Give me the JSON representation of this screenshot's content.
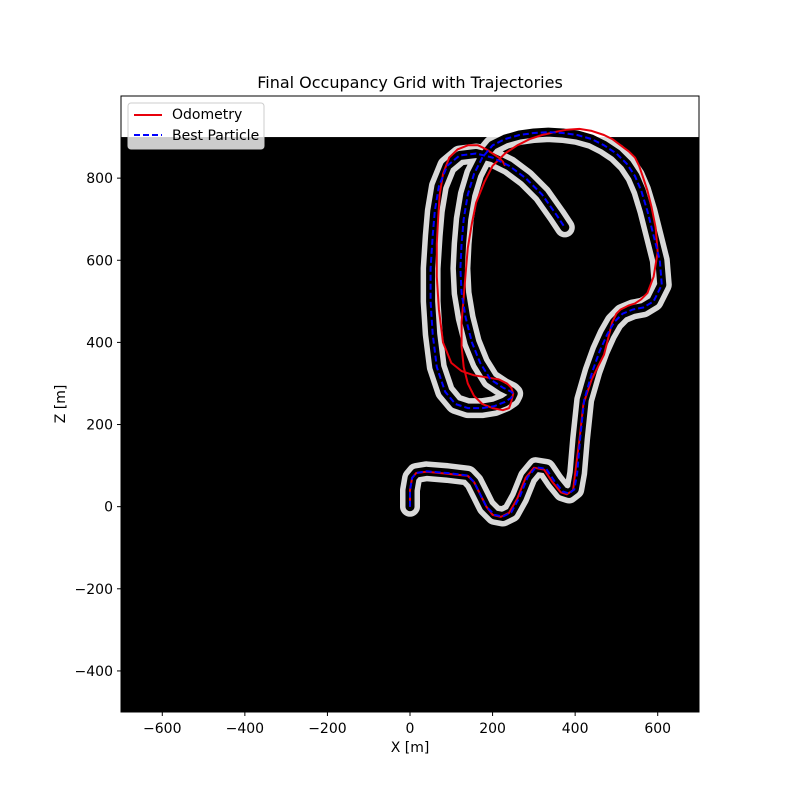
{
  "chart_data": {
    "type": "line",
    "title": "Final Occupancy Grid with Trajectories",
    "xlabel": "X [m]",
    "ylabel": "Z [m]",
    "xlim": [
      -700,
      700
    ],
    "ylim": [
      -500,
      1000
    ],
    "xticks": [
      -600,
      -400,
      -200,
      0,
      200,
      400,
      600
    ],
    "yticks": [
      -400,
      -200,
      0,
      200,
      400,
      600,
      800
    ],
    "xtick_labels": [
      "−600",
      "−400",
      "−200",
      "0",
      "200",
      "400",
      "600"
    ],
    "ytick_labels": [
      "−400",
      "−200",
      "0",
      "200",
      "400",
      "600",
      "800"
    ],
    "grid": false,
    "background": {
      "description": "occupancy grid image",
      "extent": {
        "x": [
          -700,
          700
        ],
        "y": [
          -500,
          900
        ]
      },
      "free_color": "#000000",
      "occupied_color": "#ffffff"
    },
    "legend": {
      "location": "upper left"
    },
    "series": [
      {
        "name": "Odometry",
        "color": "#e8000b",
        "style": "solid",
        "x": [
          0,
          0,
          5,
          15,
          40,
          90,
          140,
          155,
          170,
          185,
          200,
          220,
          240,
          260,
          280,
          300,
          325,
          345,
          365,
          380,
          395,
          400,
          410,
          420,
          440,
          455,
          470,
          480,
          490,
          500,
          510,
          520,
          530,
          545,
          560,
          575,
          590,
          600,
          595,
          585,
          575,
          565,
          555,
          545,
          530,
          510,
          490,
          470,
          440,
          410,
          380,
          350,
          320,
          290,
          260,
          230,
          200,
          180,
          160,
          150,
          140,
          135,
          130,
          125,
          125,
          130,
          140,
          155,
          175,
          200,
          225,
          240,
          245,
          250,
          245,
          235,
          215,
          185,
          155,
          125,
          100,
          80,
          70,
          65,
          65,
          68,
          72,
          80,
          95,
          115,
          140,
          165,
          185,
          200,
          215,
          225,
          230
        ],
        "y": [
          0,
          40,
          70,
          82,
          85,
          80,
          75,
          60,
          30,
          0,
          -20,
          -25,
          -15,
          20,
          70,
          95,
          90,
          60,
          35,
          30,
          40,
          80,
          160,
          250,
          310,
          340,
          370,
          410,
          450,
          470,
          480,
          485,
          490,
          495,
          505,
          520,
          560,
          620,
          680,
          730,
          770,
          800,
          830,
          850,
          865,
          880,
          895,
          905,
          915,
          920,
          918,
          912,
          905,
          895,
          880,
          860,
          830,
          790,
          740,
          690,
          630,
          570,
          510,
          450,
          390,
          340,
          300,
          270,
          250,
          240,
          235,
          240,
          255,
          275,
          290,
          300,
          310,
          315,
          320,
          330,
          350,
          400,
          480,
          560,
          640,
          700,
          760,
          810,
          850,
          870,
          880,
          880,
          870,
          860,
          850,
          840,
          830
        ]
      },
      {
        "name": "Best Particle",
        "color": "#0000ff",
        "style": "dashed",
        "x": [
          0,
          0,
          5,
          15,
          40,
          90,
          140,
          155,
          170,
          185,
          205,
          225,
          245,
          265,
          285,
          305,
          330,
          350,
          370,
          385,
          398,
          405,
          412,
          422,
          442,
          460,
          478,
          495,
          515,
          540,
          565,
          590,
          610,
          605,
          590,
          575,
          560,
          545,
          525,
          500,
          470,
          440,
          405,
          370,
          335,
          300,
          265,
          230,
          200,
          175,
          155,
          140,
          130,
          125,
          122,
          125,
          135,
          150,
          170,
          195,
          225,
          245,
          250,
          245,
          230,
          205,
          175,
          140,
          110,
          85,
          65,
          55,
          50,
          50,
          55,
          60,
          70,
          90,
          120,
          160,
          200,
          240,
          280,
          320,
          355,
          375
        ],
        "y": [
          0,
          40,
          70,
          82,
          86,
          82,
          76,
          60,
          30,
          0,
          -20,
          -24,
          -14,
          22,
          72,
          96,
          92,
          62,
          37,
          32,
          42,
          82,
          165,
          260,
          330,
          380,
          420,
          450,
          470,
          480,
          485,
          500,
          540,
          600,
          660,
          720,
          770,
          805,
          835,
          860,
          880,
          895,
          905,
          910,
          912,
          910,
          905,
          895,
          880,
          850,
          810,
          760,
          700,
          640,
          580,
          520,
          460,
          400,
          350,
          310,
          290,
          280,
          275,
          265,
          255,
          245,
          240,
          240,
          250,
          280,
          340,
          420,
          500,
          580,
          660,
          720,
          780,
          830,
          855,
          860,
          850,
          830,
          800,
          760,
          710,
          680
        ]
      }
    ]
  }
}
